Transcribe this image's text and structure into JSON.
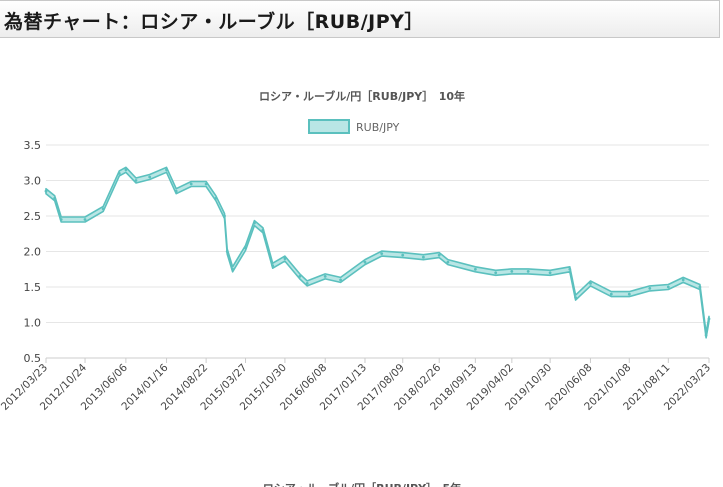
{
  "header": {
    "title": "為替チャート：ロシア・ルーブル［RUB/JPY］"
  },
  "chart_data": {
    "type": "line",
    "title": "ロシア・ルーブル/円［RUB/JPY］　10年",
    "legend": {
      "label": "RUB/JPY",
      "position": "top"
    },
    "xlabel": "",
    "ylabel": "",
    "ylim": [
      0.5,
      3.5
    ],
    "yticks": [
      "0.5",
      "1.0",
      "1.5",
      "2.0",
      "2.5",
      "3.0",
      "3.5"
    ],
    "grid": true,
    "xticks": [
      "2012/03/23",
      "2012/10/24",
      "2013/06/06",
      "2014/01/16",
      "2014/08/22",
      "2015/03/27",
      "2015/10/30",
      "2016/06/08",
      "2017/01/13",
      "2017/08/09",
      "2018/02/26",
      "2018/09/13",
      "2019/04/02",
      "2019/10/30",
      "2020/06/08",
      "2021/01/08",
      "2021/08/11",
      "2022/03/23"
    ],
    "series": [
      {
        "name": "RUB/JPY",
        "color": "#5bc0be",
        "fill": "#b9e6e5",
        "x": [
          "2012/03/23",
          "2012/05/10",
          "2012/06/15",
          "2012/10/24",
          "2013/02/01",
          "2013/05/01",
          "2013/06/06",
          "2013/08/01",
          "2013/10/15",
          "2014/01/16",
          "2014/03/10",
          "2014/06/01",
          "2014/08/22",
          "2014/10/15",
          "2014/12/01",
          "2014/12/16",
          "2015/01/15",
          "2015/03/27",
          "2015/05/15",
          "2015/07/01",
          "2015/08/24",
          "2015/10/30",
          "2016/01/20",
          "2016/03/01",
          "2016/06/08",
          "2016/09/01",
          "2017/01/13",
          "2017/04/15",
          "2017/08/09",
          "2017/12/01",
          "2018/02/26",
          "2018/04/15",
          "2018/09/13",
          "2019/01/03",
          "2019/04/02",
          "2019/07/01",
          "2019/10/30",
          "2020/02/15",
          "2020/03/18",
          "2020/06/08",
          "2020/10/01",
          "2021/01/08",
          "2021/05/01",
          "2021/08/11",
          "2021/11/01",
          "2022/02/01",
          "2022/03/07",
          "2022/03/23"
        ],
        "values": [
          2.85,
          2.75,
          2.45,
          2.45,
          2.6,
          3.1,
          3.15,
          3.0,
          3.05,
          3.15,
          2.85,
          2.95,
          2.95,
          2.75,
          2.5,
          2.0,
          1.75,
          2.05,
          2.4,
          2.3,
          1.8,
          1.9,
          1.65,
          1.55,
          1.65,
          1.6,
          1.85,
          1.97,
          1.95,
          1.92,
          1.95,
          1.85,
          1.75,
          1.7,
          1.72,
          1.72,
          1.7,
          1.75,
          1.35,
          1.55,
          1.4,
          1.4,
          1.48,
          1.5,
          1.6,
          1.5,
          0.82,
          1.05
        ]
      }
    ]
  }
}
